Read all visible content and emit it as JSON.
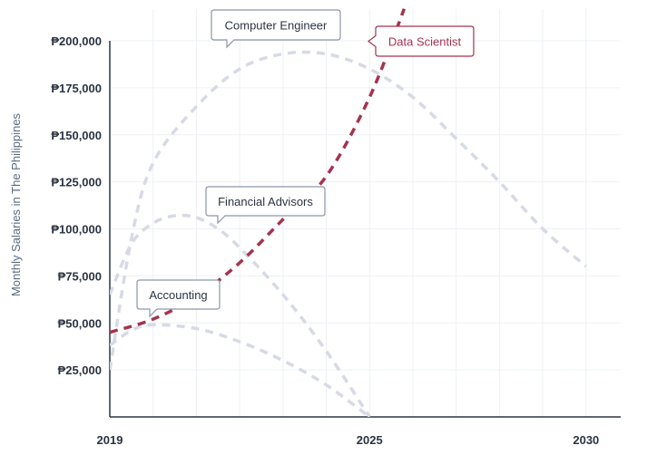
{
  "chart_data": {
    "type": "line",
    "ylabel": "Monthly Salaries in The Philippines",
    "xlabel": "",
    "xlim": [
      2019,
      2030.8
    ],
    "ylim": [
      0,
      200000
    ],
    "x_ticks": [
      2019,
      2025,
      2030
    ],
    "y_ticks": [
      25000,
      50000,
      75000,
      100000,
      125000,
      150000,
      175000,
      200000
    ],
    "y_tick_labels": [
      "₱25,000",
      "₱50,000",
      "₱75,000",
      "₱100,000",
      "₱125,000",
      "₱150,000",
      "₱175,000",
      "₱200,000"
    ],
    "x_tick_labels": [
      "2019",
      "2025",
      "2030"
    ],
    "grid": true,
    "highlight_color": "#a3344f",
    "muted_color": "#d7dae6",
    "series": [
      {
        "name": "Computer Engineer",
        "highlight": false,
        "x": [
          2019,
          2019.5,
          2020,
          2021,
          2022,
          2023,
          2024,
          2025,
          2026,
          2027,
          2028,
          2029,
          2030
        ],
        "y": [
          25000,
          95000,
          135000,
          165000,
          185000,
          193000,
          193000,
          185000,
          170000,
          148000,
          125000,
          100000,
          80000
        ]
      },
      {
        "name": "Data Scientist",
        "highlight": true,
        "x": [
          2019,
          2020,
          2021,
          2022,
          2023,
          2024,
          2025,
          2025.8
        ],
        "y": [
          45000,
          52000,
          64000,
          82000,
          105000,
          128000,
          170000,
          217000
        ]
      },
      {
        "name": "Financial Advisors",
        "highlight": false,
        "x": [
          2019,
          2019.5,
          2020,
          2020.5,
          2021,
          2021.5,
          2022,
          2023,
          2024,
          2025
        ],
        "y": [
          65000,
          92000,
          103000,
          107000,
          106000,
          100000,
          90000,
          65000,
          35000,
          0
        ]
      },
      {
        "name": "Accounting",
        "highlight": false,
        "x": [
          2019,
          2019.5,
          2020,
          2021,
          2022,
          2023,
          2024,
          2025
        ],
        "y": [
          38000,
          46000,
          49000,
          47000,
          40000,
          30000,
          17000,
          0
        ]
      }
    ],
    "annotations": [
      {
        "text": "Computer Engineer",
        "series": "Computer Engineer",
        "highlight": false
      },
      {
        "text": "Data Scientist",
        "series": "Data Scientist",
        "highlight": true
      },
      {
        "text": "Financial Advisors",
        "series": "Financial Advisors",
        "highlight": false
      },
      {
        "text": "Accounting",
        "series": "Accounting",
        "highlight": false
      }
    ]
  }
}
